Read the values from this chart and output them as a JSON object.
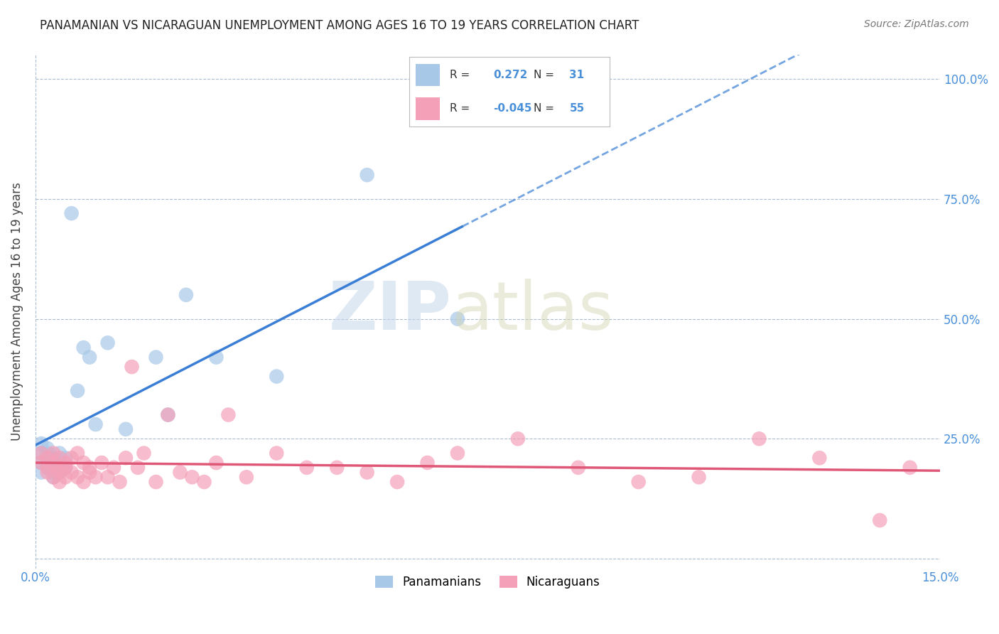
{
  "title": "PANAMANIAN VS NICARAGUAN UNEMPLOYMENT AMONG AGES 16 TO 19 YEARS CORRELATION CHART",
  "source": "Source: ZipAtlas.com",
  "ylabel": "Unemployment Among Ages 16 to 19 years",
  "xlim": [
    0.0,
    0.15
  ],
  "ylim": [
    -0.02,
    1.05
  ],
  "xticks": [
    0.0,
    0.05,
    0.1,
    0.15
  ],
  "xticklabels": [
    "0.0%",
    "",
    "",
    "15.0%"
  ],
  "yticks_right": [
    0.0,
    0.25,
    0.5,
    0.75,
    1.0
  ],
  "yticklabels_right": [
    "",
    "25.0%",
    "50.0%",
    "75.0%",
    "100.0%"
  ],
  "panama_R": 0.272,
  "panama_N": 31,
  "nicaragua_R": -0.045,
  "nicaragua_N": 55,
  "panama_color": "#a8c8e8",
  "nicaragua_color": "#f4a0b8",
  "panama_line_color": "#3a7fd5",
  "nicaragua_line_color": "#e05878",
  "panama_scatter_x": [
    0.001,
    0.001,
    0.001,
    0.001,
    0.002,
    0.002,
    0.002,
    0.002,
    0.003,
    0.003,
    0.003,
    0.003,
    0.004,
    0.004,
    0.004,
    0.005,
    0.005,
    0.006,
    0.007,
    0.008,
    0.009,
    0.01,
    0.012,
    0.015,
    0.02,
    0.022,
    0.025,
    0.03,
    0.04,
    0.055,
    0.07
  ],
  "panama_scatter_y": [
    0.22,
    0.2,
    0.18,
    0.24,
    0.21,
    0.19,
    0.23,
    0.22,
    0.18,
    0.2,
    0.17,
    0.21,
    0.2,
    0.22,
    0.18,
    0.21,
    0.19,
    0.72,
    0.35,
    0.44,
    0.42,
    0.28,
    0.45,
    0.27,
    0.42,
    0.3,
    0.55,
    0.42,
    0.38,
    0.8,
    0.5
  ],
  "nicaragua_scatter_x": [
    0.001,
    0.001,
    0.002,
    0.002,
    0.002,
    0.003,
    0.003,
    0.003,
    0.004,
    0.004,
    0.004,
    0.004,
    0.005,
    0.005,
    0.005,
    0.006,
    0.006,
    0.007,
    0.007,
    0.008,
    0.008,
    0.009,
    0.009,
    0.01,
    0.011,
    0.012,
    0.013,
    0.014,
    0.015,
    0.016,
    0.017,
    0.018,
    0.02,
    0.022,
    0.024,
    0.026,
    0.028,
    0.03,
    0.032,
    0.035,
    0.04,
    0.045,
    0.05,
    0.055,
    0.06,
    0.065,
    0.07,
    0.08,
    0.09,
    0.1,
    0.11,
    0.12,
    0.13,
    0.14,
    0.145
  ],
  "nicaragua_scatter_y": [
    0.22,
    0.2,
    0.19,
    0.21,
    0.18,
    0.17,
    0.22,
    0.2,
    0.19,
    0.16,
    0.21,
    0.18,
    0.17,
    0.2,
    0.19,
    0.18,
    0.21,
    0.17,
    0.22,
    0.16,
    0.2,
    0.19,
    0.18,
    0.17,
    0.2,
    0.17,
    0.19,
    0.16,
    0.21,
    0.4,
    0.19,
    0.22,
    0.16,
    0.3,
    0.18,
    0.17,
    0.16,
    0.2,
    0.3,
    0.17,
    0.22,
    0.19,
    0.19,
    0.18,
    0.16,
    0.2,
    0.22,
    0.25,
    0.19,
    0.16,
    0.17,
    0.25,
    0.21,
    0.08,
    0.19
  ]
}
